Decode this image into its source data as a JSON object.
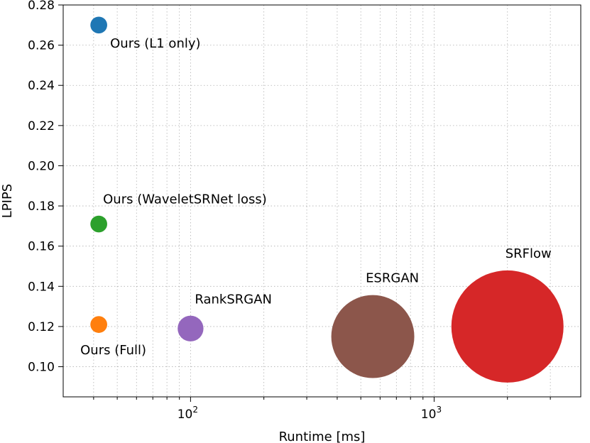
{
  "chart_data": {
    "type": "scatter",
    "title": "",
    "xlabel": "Runtime [ms]",
    "ylabel": "LPIPS",
    "xscale": "log",
    "xlim": [
      30,
      4000
    ],
    "ylim": [
      0.085,
      0.28
    ],
    "grid": "major and minor, dotted",
    "x_ticks": [
      {
        "value": 100,
        "base": "10",
        "exp": "2"
      },
      {
        "value": 1000,
        "base": "10",
        "exp": "3"
      }
    ],
    "y_ticks": [
      {
        "value": 0.1,
        "label": "0.10"
      },
      {
        "value": 0.12,
        "label": "0.12"
      },
      {
        "value": 0.14,
        "label": "0.14"
      },
      {
        "value": 0.16,
        "label": "0.16"
      },
      {
        "value": 0.18,
        "label": "0.18"
      },
      {
        "value": 0.2,
        "label": "0.20"
      },
      {
        "value": 0.22,
        "label": "0.22"
      },
      {
        "value": 0.24,
        "label": "0.24"
      },
      {
        "value": 0.26,
        "label": "0.26"
      },
      {
        "value": 0.28,
        "label": "0.28"
      }
    ],
    "points": [
      {
        "label": "Ours (L1 only)",
        "x": 42,
        "y": 0.27,
        "color": "#1f77b4",
        "relative_size": 0.15,
        "label_position": "below-right"
      },
      {
        "label": "Ours (WaveletSRNet loss)",
        "x": 42,
        "y": 0.171,
        "color": "#2ca02c",
        "relative_size": 0.15,
        "label_position": "above-right"
      },
      {
        "label": "Ours (Full)",
        "x": 42,
        "y": 0.121,
        "color": "#ff7f0e",
        "relative_size": 0.15,
        "label_position": "below"
      },
      {
        "label": "RankSRGAN",
        "x": 100,
        "y": 0.119,
        "color": "#9467bd",
        "relative_size": 0.23,
        "label_position": "above-right"
      },
      {
        "label": "ESRGAN",
        "x": 560,
        "y": 0.115,
        "color": "#8c564b",
        "relative_size": 0.74,
        "label_position": "above"
      },
      {
        "label": "SRFlow",
        "x": 2000,
        "y": 0.12,
        "color": "#d62728",
        "relative_size": 1.0,
        "label_position": "above-right"
      }
    ]
  }
}
